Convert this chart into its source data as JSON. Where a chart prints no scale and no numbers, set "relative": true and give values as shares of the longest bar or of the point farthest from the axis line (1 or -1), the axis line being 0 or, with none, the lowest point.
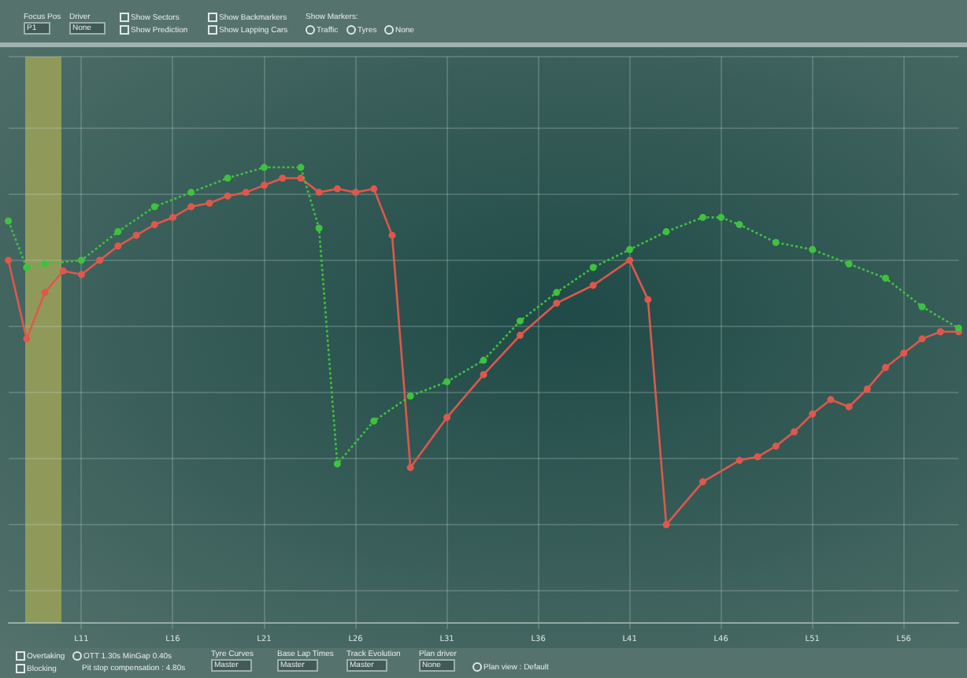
{
  "chart_data": {
    "type": "line",
    "relative": true,
    "grid": true,
    "marker": "circle",
    "legend": false,
    "categories": [
      null,
      null,
      null,
      null,
      "L11",
      null,
      null,
      null,
      null,
      "L16",
      null,
      null,
      null,
      null,
      "L21",
      null,
      null,
      null,
      null,
      "L26",
      null,
      null,
      null,
      null,
      "L31",
      null,
      null,
      null,
      null,
      "L36",
      null,
      null,
      null,
      null,
      "L41",
      null,
      null,
      null,
      null,
      "L46",
      null,
      null,
      null,
      null,
      "L51",
      null,
      null,
      null,
      null,
      "L56",
      null,
      null,
      null
    ],
    "series": [
      {
        "color": "#3fc23f",
        "line_style": "dotted",
        "values": [
          0.85,
          0.72,
          0.73,
          null,
          0.74,
          null,
          0.82,
          null,
          0.89,
          null,
          0.93,
          null,
          0.97,
          null,
          1.0,
          null,
          1.0,
          0.83,
          0.17,
          null,
          0.29,
          null,
          0.36,
          null,
          0.4,
          null,
          0.46,
          null,
          0.57,
          null,
          0.65,
          null,
          0.72,
          null,
          0.77,
          null,
          0.82,
          null,
          0.86,
          0.86,
          0.84,
          null,
          0.79,
          null,
          0.77,
          null,
          0.73,
          null,
          0.69,
          null,
          0.61,
          null,
          0.55
        ]
      },
      {
        "color": "#e0574c",
        "line_style": "solid",
        "values": [
          0.74,
          0.52,
          0.65,
          0.71,
          0.7,
          0.74,
          0.78,
          0.81,
          0.84,
          0.86,
          0.89,
          0.9,
          0.92,
          0.93,
          0.95,
          0.97,
          0.97,
          0.93,
          0.94,
          0.93,
          0.94,
          0.81,
          0.16,
          null,
          0.3,
          null,
          0.42,
          null,
          0.53,
          null,
          0.62,
          null,
          0.67,
          null,
          0.74,
          0.63,
          0,
          null,
          0.12,
          null,
          0.18,
          0.19,
          0.22,
          0.26,
          0.31,
          0.35,
          0.33,
          0.38,
          0.44,
          0.48,
          0.52,
          0.54,
          0.54
        ]
      }
    ],
    "annotations": [
      "Focus Pos",
      "P1",
      "Driver",
      "None",
      "Show Sectors",
      "Show Prediction",
      "Show Backmarkers",
      "Show Lapping Cars",
      "Show Markers:",
      "Traffic",
      "Tyres",
      "None",
      "Overtaking",
      "Blocking",
      "OTT 1.30s MinGap 0.40s",
      "Pit stop compensation : 4.80s",
      "Tyre Curves",
      "Master",
      "Base Lap Times",
      "Master",
      "Track Evolution",
      "Master",
      "Plan driver",
      "None",
      "Plan view : Default"
    ]
  }
}
